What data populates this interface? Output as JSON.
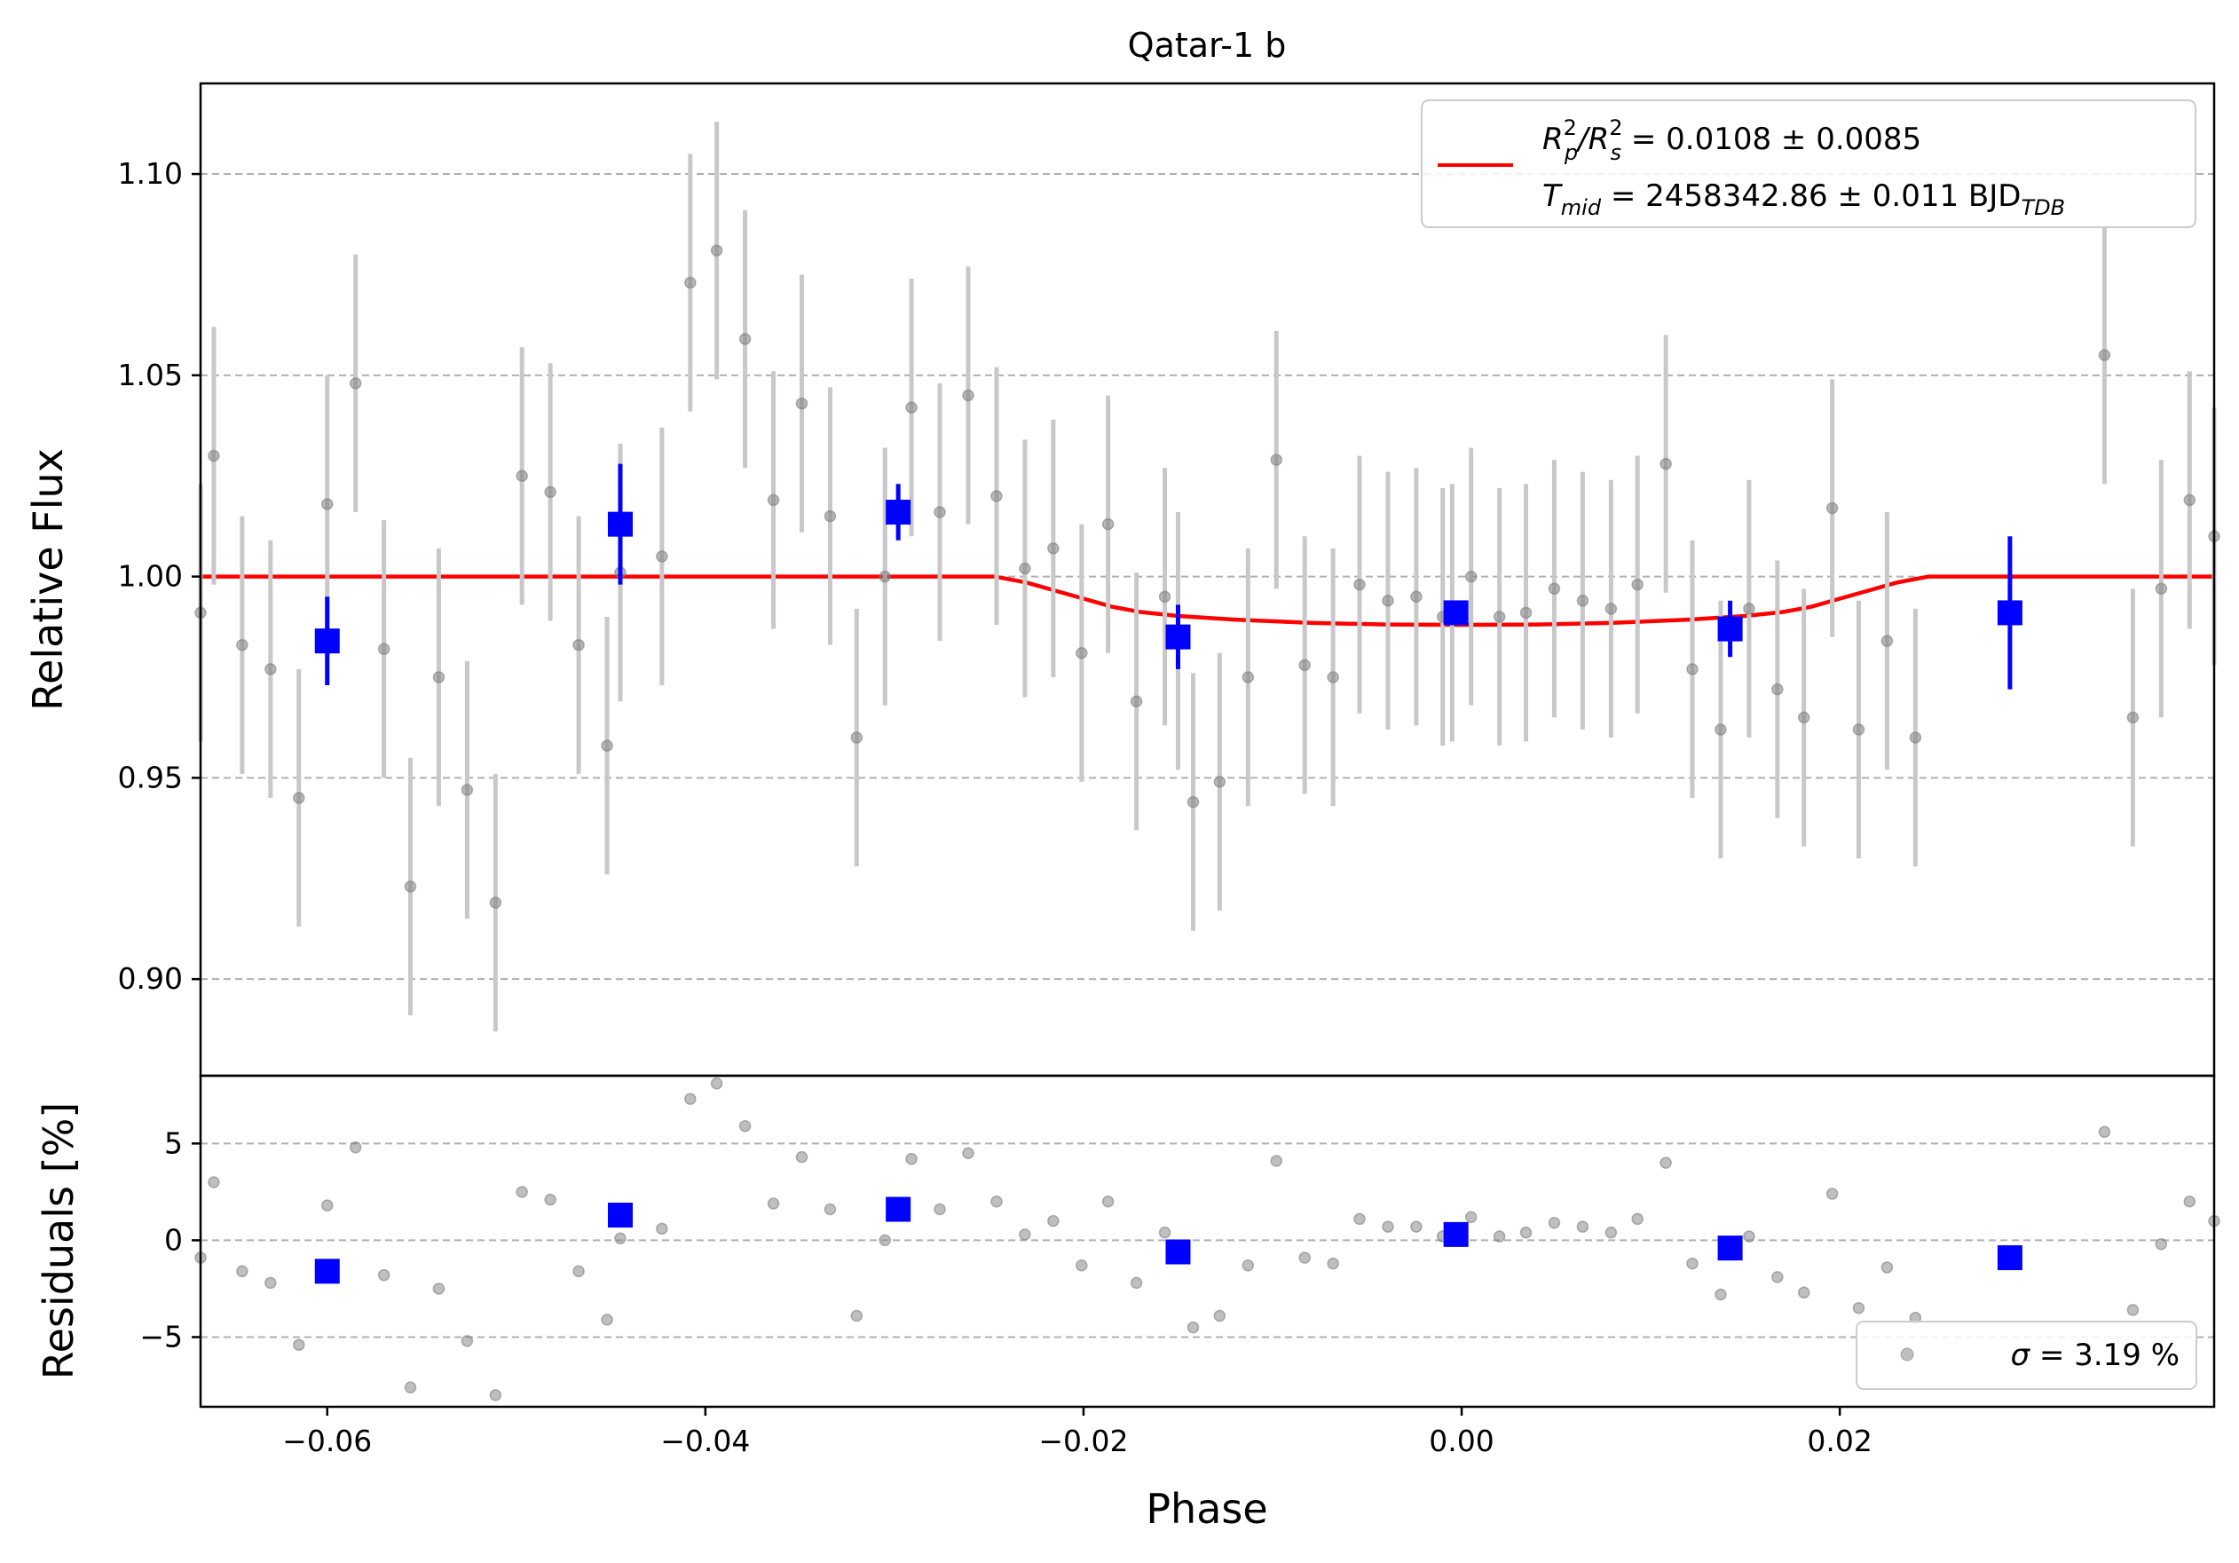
{
  "chart_data": {
    "type": "scatter",
    "title": "Qatar-1 b",
    "xlabel": "Phase",
    "colors": {
      "raw": "#808080",
      "raw_errorbar": "#c8c8c8",
      "binned": "#0000ff",
      "model": "#ff0000",
      "grid": "#b0b0b0"
    },
    "x_ticks": [
      -0.06,
      -0.04,
      -0.02,
      0.0,
      0.02
    ],
    "x_tick_labels": [
      "−0.06",
      "−0.04",
      "−0.02",
      "0.00",
      "0.02"
    ],
    "xlim": [
      -0.0667,
      0.0398
    ],
    "panels": {
      "flux": {
        "ylabel": "Relative Flux",
        "ylim": [
          0.876,
          1.1225
        ],
        "y_ticks": [
          0.9,
          0.95,
          1.0,
          1.05,
          1.1
        ],
        "y_tick_labels": [
          "0.90",
          "0.95",
          "1.00",
          "1.05",
          "1.10"
        ],
        "grid": "y-dashed",
        "legend": {
          "location": "top-right",
          "line1_main": "R",
          "line1_sub1": "p",
          "line1_sup1": "2",
          "line1_sep": "/R",
          "line1_sub2": "s",
          "line1_sup2": "2",
          "line1_value": " = 0.0108 ± 0.0085",
          "line2_main": "T",
          "line2_sub": "mid",
          "line2_value": " = 2458342.86 ± 0.011 BJD",
          "line2_unit_sub": "TDB"
        }
      },
      "residuals": {
        "ylabel": "Residuals [%]",
        "ylim": [
          -8.6,
          8.5
        ],
        "y_ticks": [
          -5,
          0,
          5
        ],
        "y_tick_labels": [
          "−5",
          "0",
          "5"
        ],
        "grid": "y-dashed",
        "legend": {
          "location": "bottom-right",
          "sigma_symbol": "σ",
          "sigma_value": " = 3.19 %"
        }
      }
    },
    "series": [
      {
        "role": "raw",
        "x": [
          -0.0667,
          -0.066,
          -0.0645,
          -0.063,
          -0.0615,
          -0.06,
          -0.0585,
          -0.057,
          -0.0556,
          -0.0541,
          -0.0526,
          -0.0511,
          -0.0497,
          -0.0482,
          -0.0467,
          -0.0452,
          -0.0445,
          -0.0423,
          -0.0408,
          -0.0394,
          -0.0379,
          -0.0364,
          -0.0349,
          -0.0334,
          -0.032,
          -0.0305,
          -0.0291,
          -0.0276,
          -0.0261,
          -0.0246,
          -0.0231,
          -0.0216,
          -0.0201,
          -0.0187,
          -0.0172,
          -0.0157,
          -0.015,
          -0.0142,
          -0.0128,
          -0.0113,
          -0.0098,
          -0.0083,
          -0.0068,
          -0.0054,
          -0.0039,
          -0.0024,
          -0.001,
          -0.0005,
          0.0005,
          0.002,
          0.0034,
          0.0049,
          0.0064,
          0.0079,
          0.0093,
          0.0108,
          0.0122,
          0.0137,
          0.0152,
          0.0167,
          0.0181,
          0.0196,
          0.021,
          0.0225,
          0.024,
          0.034,
          0.0355,
          0.037,
          0.0385,
          0.0398
        ],
        "y": [
          0.991,
          1.03,
          0.983,
          0.977,
          0.945,
          1.018,
          1.048,
          0.982,
          0.923,
          0.975,
          0.947,
          0.919,
          1.025,
          1.021,
          0.983,
          0.958,
          1.001,
          1.005,
          1.073,
          1.081,
          1.059,
          1.019,
          1.043,
          1.015,
          0.96,
          1.0,
          1.042,
          1.016,
          1.045,
          1.02,
          1.002,
          1.007,
          0.981,
          1.013,
          0.969,
          0.995,
          0.984,
          0.944,
          0.949,
          0.975,
          1.029,
          0.978,
          0.975,
          0.998,
          0.994,
          0.995,
          0.99,
          0.991,
          1.0,
          0.99,
          0.991,
          0.997,
          0.994,
          0.992,
          0.998,
          1.028,
          0.977,
          0.962,
          0.992,
          0.972,
          0.965,
          1.017,
          0.962,
          0.984,
          0.96,
          1.055,
          0.965,
          0.997,
          1.019,
          1.01
        ],
        "yerr": [
          0.032,
          0.032,
          0.032,
          0.032,
          0.032,
          0.032,
          0.032,
          0.032,
          0.032,
          0.032,
          0.032,
          0.032,
          0.032,
          0.032,
          0.032,
          0.032,
          0.032,
          0.032,
          0.032,
          0.032,
          0.032,
          0.032,
          0.032,
          0.032,
          0.032,
          0.032,
          0.032,
          0.032,
          0.032,
          0.032,
          0.032,
          0.032,
          0.032,
          0.032,
          0.032,
          0.032,
          0.032,
          0.032,
          0.032,
          0.032,
          0.032,
          0.032,
          0.032,
          0.032,
          0.032,
          0.032,
          0.032,
          0.032,
          0.032,
          0.032,
          0.032,
          0.032,
          0.032,
          0.032,
          0.032,
          0.032,
          0.032,
          0.032,
          0.032,
          0.032,
          0.032,
          0.032,
          0.032,
          0.032,
          0.032,
          0.032,
          0.032,
          0.032,
          0.032,
          0.032
        ],
        "residuals": [
          -0.9,
          3.0,
          -1.6,
          -2.2,
          -5.4,
          1.8,
          4.8,
          -1.8,
          -7.6,
          -2.5,
          -5.2,
          -8.0,
          2.5,
          2.1,
          -1.6,
          -4.1,
          0.1,
          0.6,
          7.3,
          8.1,
          5.9,
          1.9,
          4.3,
          1.6,
          -3.9,
          0.0,
          4.2,
          1.6,
          4.5,
          2.0,
          0.3,
          1.0,
          -1.3,
          2.0,
          -2.2,
          0.4,
          -0.7,
          -4.5,
          -3.9,
          -1.3,
          4.1,
          -0.9,
          -1.2,
          1.1,
          0.7,
          0.7,
          0.2,
          0.3,
          1.2,
          0.2,
          0.4,
          0.9,
          0.7,
          0.4,
          1.1,
          4.0,
          -1.2,
          -2.8,
          0.2,
          -1.9,
          -2.7,
          2.4,
          -3.5,
          -1.4,
          -4.0,
          5.6,
          -3.6,
          -0.2,
          2.0,
          1.0
        ]
      },
      {
        "role": "binned",
        "x": [
          -0.06,
          -0.0445,
          -0.0298,
          -0.015,
          -0.0003,
          0.0142,
          0.029
        ],
        "y": [
          0.984,
          1.013,
          1.016,
          0.985,
          0.991,
          0.987,
          0.991
        ],
        "yerr": [
          0.011,
          0.015,
          0.007,
          0.008,
          0.003,
          0.007,
          0.019
        ],
        "residuals": [
          -1.6,
          1.3,
          1.6,
          -0.6,
          0.3,
          -0.4,
          -0.9
        ]
      },
      {
        "role": "model",
        "x": [
          -0.0667,
          -0.0247,
          -0.023,
          -0.0215,
          -0.02,
          -0.0185,
          -0.017,
          -0.015,
          -0.012,
          -0.008,
          -0.004,
          0.0,
          0.004,
          0.008,
          0.012,
          0.015,
          0.017,
          0.0185,
          0.02,
          0.0215,
          0.023,
          0.0247,
          0.0398
        ],
        "y": [
          1.0,
          1.0,
          0.9985,
          0.9965,
          0.9945,
          0.9925,
          0.9912,
          0.9902,
          0.9893,
          0.9885,
          0.9881,
          0.988,
          0.9881,
          0.9885,
          0.9893,
          0.9902,
          0.9912,
          0.9925,
          0.9945,
          0.9965,
          0.9985,
          1.0,
          1.0
        ]
      }
    ]
  }
}
